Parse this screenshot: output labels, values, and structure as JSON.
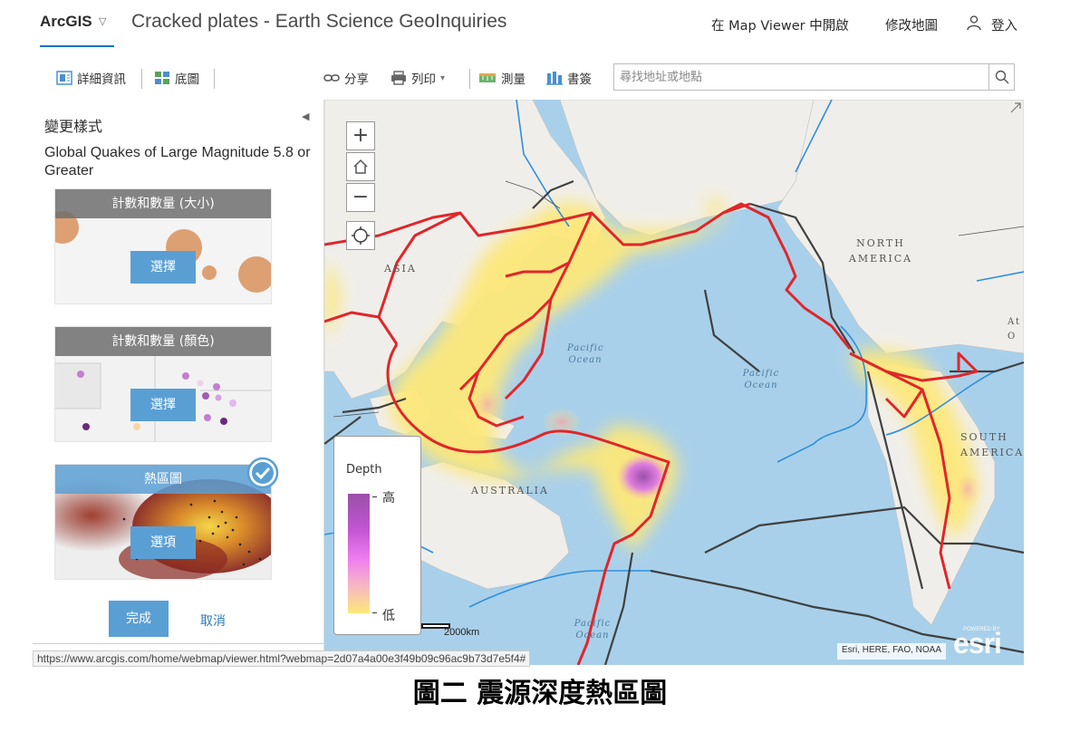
{
  "header": {
    "brand": "ArcGIS",
    "map_title": "Cracked plates - Earth Science GeoInquiries",
    "open_in_viewer": "在 Map Viewer 中開啟",
    "edit_map": "修改地圖",
    "sign_in": "登入"
  },
  "toolbar": {
    "details": "詳細資訊",
    "basemap": "底圖",
    "share": "分享",
    "print": "列印",
    "measure": "測量",
    "bookmarks": "書簽",
    "search_placeholder": "尋找地址或地點"
  },
  "panel": {
    "heading": "變更樣式",
    "layer_name": "Global Quakes of Large Magnitude 5.8 or Greater",
    "cards": [
      {
        "title": "計數和數量 (大小)",
        "button": "選擇"
      },
      {
        "title": "計數和數量 (顏色)",
        "button": "選擇"
      },
      {
        "title": "熱區圖",
        "button": "選項"
      }
    ],
    "done": "完成",
    "cancel": "取消"
  },
  "map": {
    "labels": {
      "asia": "ASIA",
      "north_america": "NORTH AMERICA",
      "south_america": "SOUTH AMERICA",
      "australia": "AUSTRALIA",
      "atlantic": "At O",
      "pacific_west": "Pacific Ocean",
      "pacific_center": "Pacific Ocean",
      "pacific_south": "Pacific Ocean"
    },
    "legend": {
      "title": "Depth",
      "high": "高",
      "low": "低"
    },
    "scale_label": "2000km",
    "attribution": "Esri, HERE, FAO, NOAA",
    "logo": "esri",
    "logo_tag": "POWERED BY"
  },
  "status_url": "https://www.arcgis.com/home/webmap/viewer.html?webmap=2d07a4a00e3f49b09c96ac9b73d7e5f4#",
  "caption": "圖二 震源深度熱區圖",
  "colors": {
    "accent": "#0079c1",
    "button": "#5a9fd4",
    "plate_boundary": "#e0262a",
    "heat_low": "#fde87a",
    "heat_high": "#9b4fa8"
  }
}
